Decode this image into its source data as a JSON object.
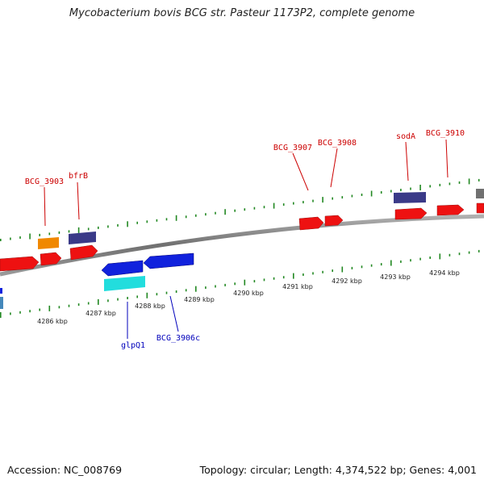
{
  "title": "Mycobacterium bovis BCG str. Pasteur 1173P2, complete genome",
  "footer": {
    "accession": "Accession: NC_008769",
    "summary": "Topology: circular; Length: 4,374,522 bp; Genes: 4,001"
  },
  "colors": {
    "forward_gene": "#ee1111",
    "reverse_gene": "#1122dd",
    "other_feature": "#3a3a88",
    "grey_feature": "#707070",
    "orange_feature": "#f08800",
    "cyan_feature": "#22dddd",
    "teal_feature": "#4488bb",
    "tick": "#228822",
    "backbone": "#808080",
    "forward_label": "#cc0000",
    "reverse_label": "#0000bb"
  },
  "scale_labels": [
    "4286 kbp",
    "4287 kbp",
    "4288 kbp",
    "4289 kbp",
    "4290 kbp",
    "4291 kbp",
    "4292 kbp",
    "4293 kbp",
    "4294 kbp"
  ],
  "gene_labels": {
    "forward": [
      "BCG_3903",
      "bfrB",
      "BCG_3907",
      "BCG_3908",
      "sodA",
      "BCG_3910"
    ],
    "reverse": [
      "glpQ1",
      "BCG_3906c"
    ]
  }
}
